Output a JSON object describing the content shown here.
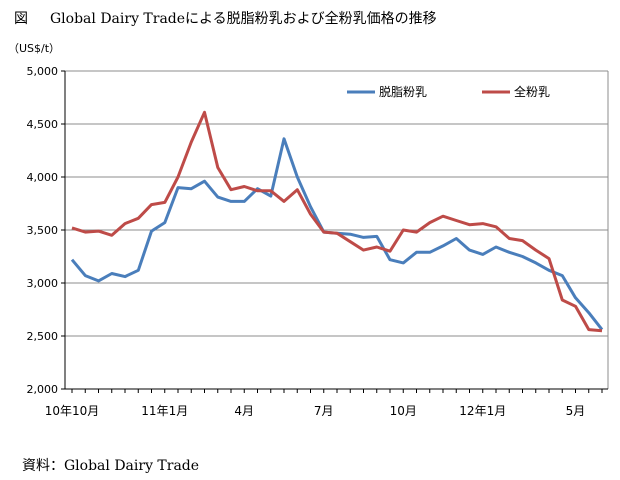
{
  "header": {
    "figure_label": "図",
    "title": "Global Dairy Tradeによる脱脂粉乳および全粉乳価格の推移"
  },
  "unit_label": "（US$/t）",
  "source": "資料：Global Dairy Trade",
  "chart_data": {
    "type": "line",
    "ylim": [
      2000,
      5000
    ],
    "yticks": [
      2000,
      2500,
      3000,
      3500,
      4000,
      4500,
      5000
    ],
    "ytick_labels": [
      "2,000",
      "2,500",
      "3,000",
      "3,500",
      "4,000",
      "4,500",
      "5,000"
    ],
    "grid": true,
    "legend_position": "top-right",
    "x_ticks": [
      {
        "index": 0,
        "label": "10年10月"
      },
      {
        "index": 7,
        "label": "11年1月"
      },
      {
        "index": 13,
        "label": "4月"
      },
      {
        "index": 19,
        "label": "7月"
      },
      {
        "index": 25,
        "label": "10月"
      },
      {
        "index": 31,
        "label": "12年1月"
      },
      {
        "index": 38,
        "label": "5月"
      }
    ],
    "series": [
      {
        "name": "脱脂粉乳",
        "color": "#4a7ebb",
        "values": [
          3220,
          3070,
          3020,
          3090,
          3060,
          3120,
          3490,
          3570,
          3900,
          3890,
          3960,
          3810,
          3770,
          3770,
          3890,
          3820,
          4360,
          4000,
          3720,
          3480,
          3470,
          3460,
          3430,
          3440,
          3220,
          3190,
          3290,
          3290,
          3350,
          3420,
          3310,
          3270,
          3340,
          3290,
          3250,
          3190,
          3120,
          3070,
          2860,
          2720,
          2560
        ]
      },
      {
        "name": "全粉乳",
        "color": "#be4b48",
        "values": [
          3520,
          3480,
          3490,
          3450,
          3560,
          3610,
          3740,
          3760,
          4000,
          4330,
          4610,
          4090,
          3880,
          3910,
          3870,
          3870,
          3770,
          3880,
          3650,
          3480,
          3470,
          3390,
          3310,
          3340,
          3300,
          3500,
          3480,
          3570,
          3630,
          3590,
          3550,
          3560,
          3530,
          3420,
          3400,
          3310,
          3230,
          2840,
          2780,
          2560,
          2550
        ]
      }
    ]
  }
}
